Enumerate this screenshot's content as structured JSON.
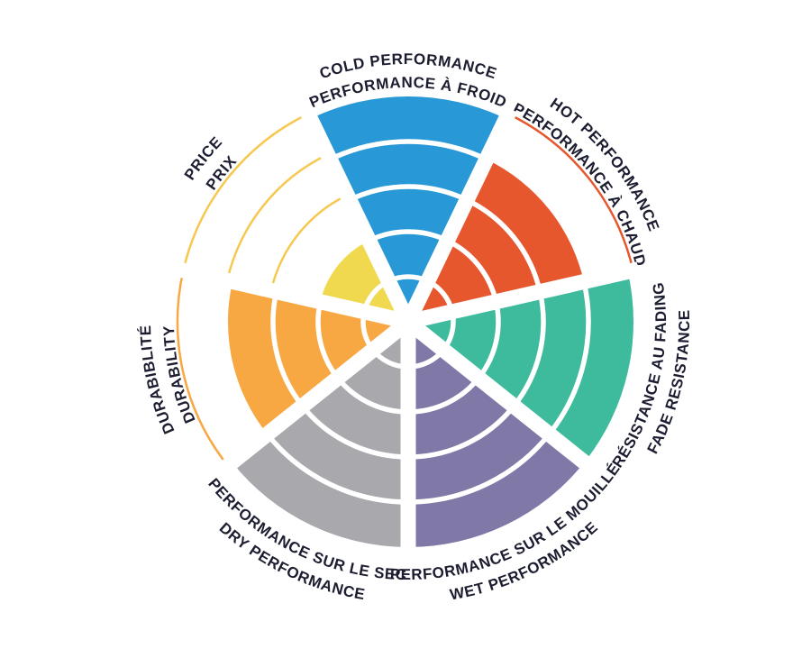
{
  "chart_data": {
    "type": "radial-sector-rating",
    "title": "",
    "max_rating": 5,
    "rings": 5,
    "legend_position": "around",
    "grid": "white ring separators and radial spokes over filled sectors",
    "background": "#FFFFFF",
    "text_color": "#1C1D30",
    "sectors": [
      {
        "id": "cold-performance",
        "labels": [
          "COLD PERFORMANCE",
          "PERFORMANCE À FROID"
        ],
        "value": 5,
        "color": "#2899D6",
        "outline_color": "#2899D6"
      },
      {
        "id": "hot-performance",
        "labels": [
          "HOT PERFORMANCE",
          "PERFORMANCE À CHAUD"
        ],
        "value": 4,
        "color": "#E7572E",
        "outline_color": "#E7572E"
      },
      {
        "id": "fade-resistance",
        "labels": [
          "RÉSISTANCE AU FADING",
          "FADE RESISTANCE"
        ],
        "value": 5,
        "color": "#3EBB9D",
        "outline_color": "#3EBB9D"
      },
      {
        "id": "wet-performance",
        "labels": [
          "PERFORMANCE SUR LE MOUILLÉ",
          "WET PERFORMANCE"
        ],
        "value": 5,
        "color": "#8079A7",
        "outline_color": "#8079A7"
      },
      {
        "id": "dry-performance",
        "labels": [
          "PERFORMANCE SUR LE SEC",
          "DRY PERFORMANCE"
        ],
        "value": 5,
        "color": "#A9A8AD",
        "outline_color": "#A9A8AD"
      },
      {
        "id": "durability",
        "labels": [
          "DURABIBLITÉ",
          "DURABILITY"
        ],
        "value": 4,
        "color": "#F8A843",
        "outline_color": "#F8A843"
      },
      {
        "id": "price",
        "labels": [
          "PRICE",
          "PRIX"
        ],
        "value": 2,
        "color": "#F0D94F",
        "outline_color": "#F6C84E"
      }
    ]
  }
}
